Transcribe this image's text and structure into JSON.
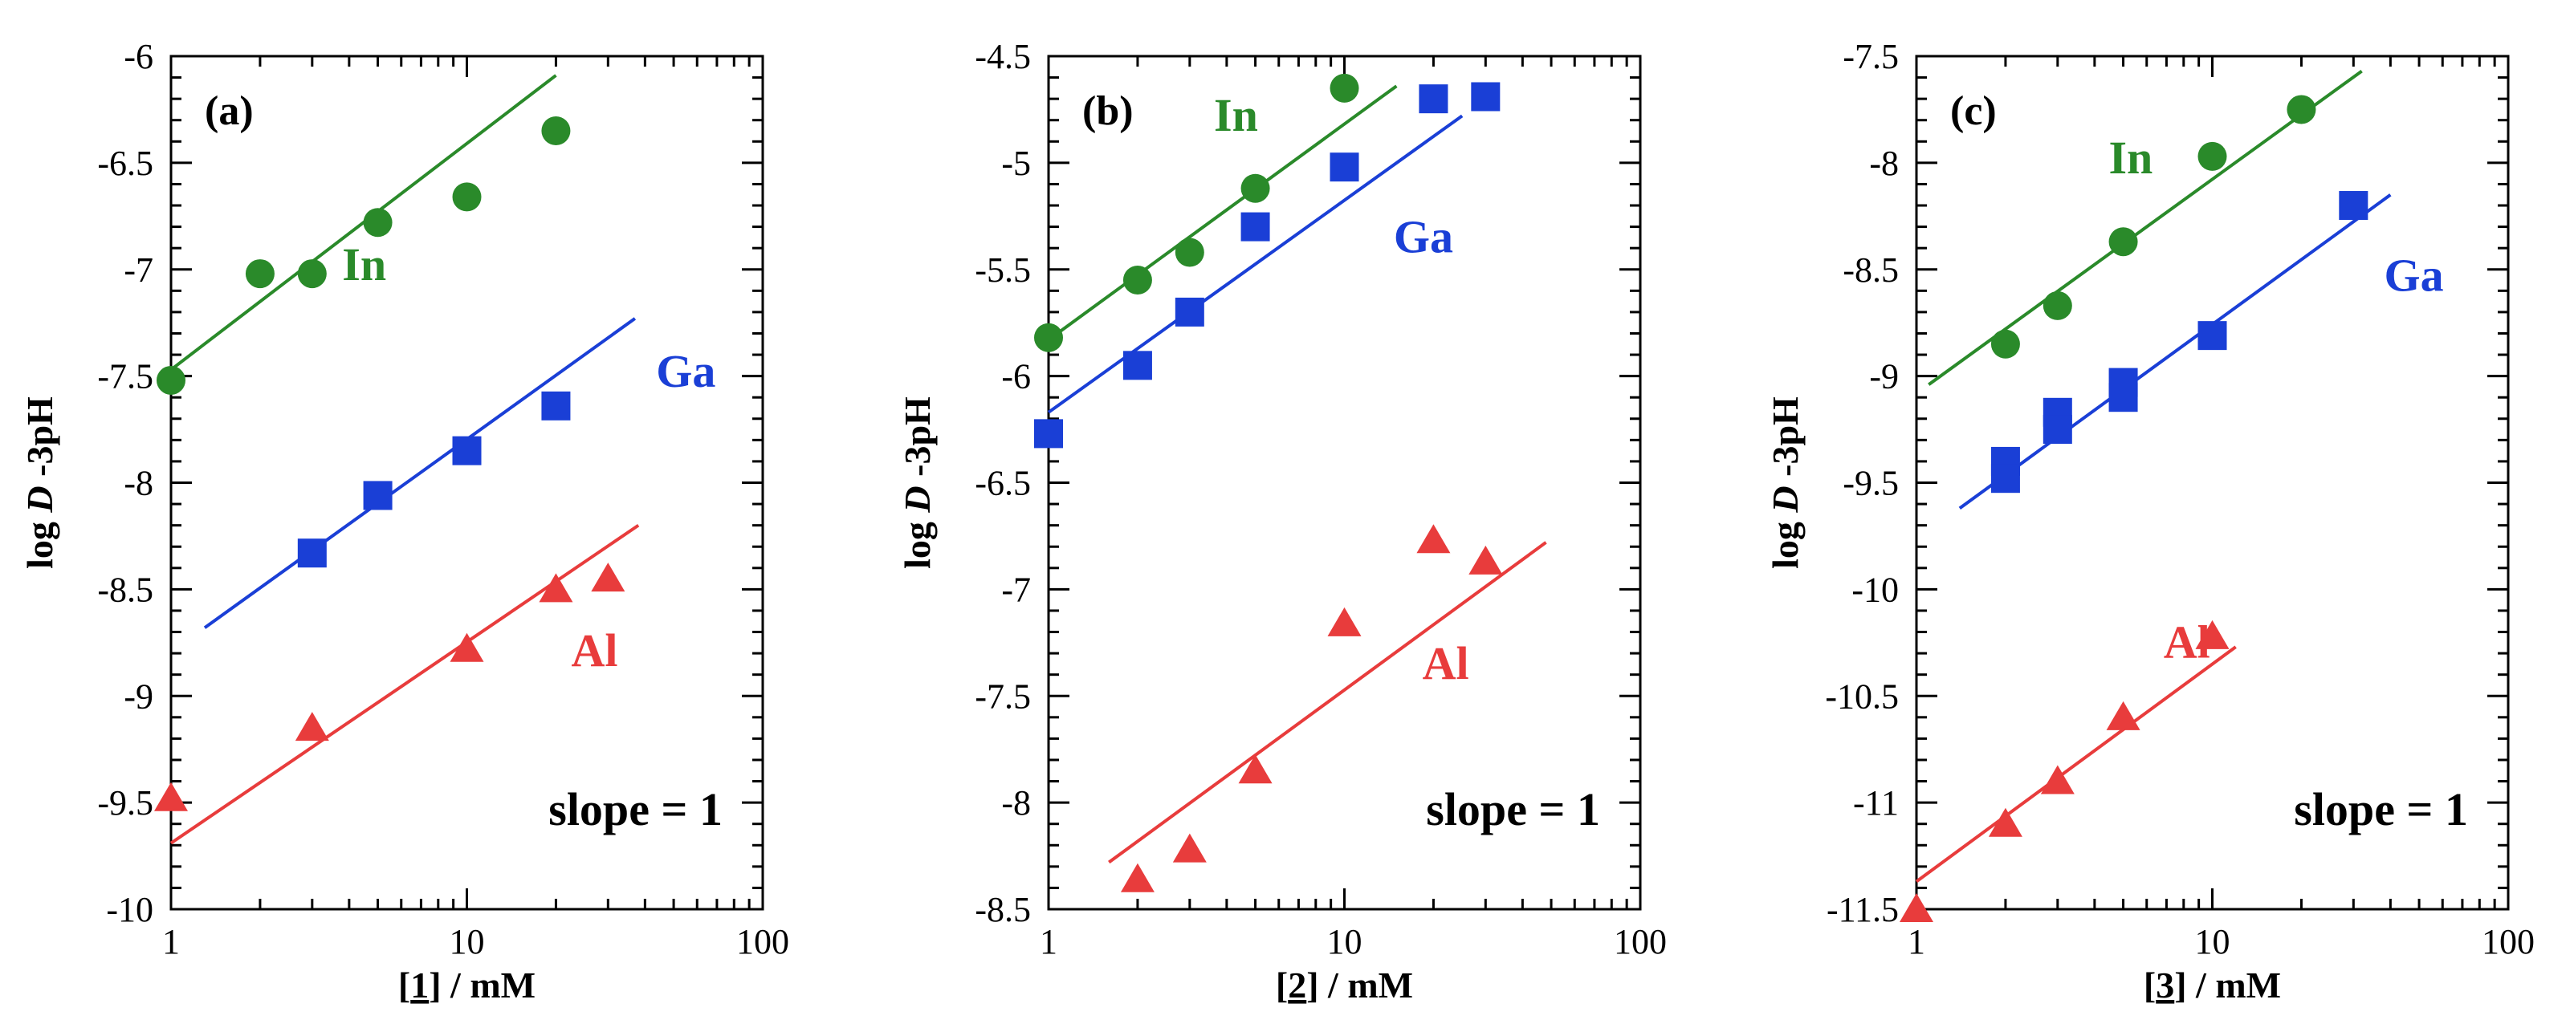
{
  "chart_data": [
    {
      "type": "scatter",
      "panel_label": "(a)",
      "xlabel_prefix": "[",
      "xlabel_compound": "1",
      "xlabel_suffix": "] / mM",
      "ylabel_prefix": "log ",
      "ylabel_italic": "D",
      "ylabel_suffix": " -3pH",
      "xscale": "log",
      "xlim": [
        1,
        100
      ],
      "ylim": [
        -10,
        -6
      ],
      "x_ticks": [
        1,
        10,
        100
      ],
      "x_tick_labels": [
        "1",
        "10",
        "100"
      ],
      "y_ticks": [
        -6,
        -6.5,
        -7,
        -7.5,
        -8,
        -8.5,
        -9,
        -9.5,
        -10
      ],
      "y_tick_labels": [
        "-6",
        "-6.5",
        "-7",
        "-7.5",
        "-8",
        "-8.5",
        "-9",
        "-9.5",
        "-10"
      ],
      "annotation": "slope = 1",
      "series": [
        {
          "name": "In",
          "color": "#2a8a2a",
          "marker": "circle",
          "x": [
            1,
            2,
            3,
            5,
            10,
            20
          ],
          "y": [
            -7.52,
            -7.02,
            -7.02,
            -6.78,
            -6.66,
            -6.35
          ],
          "fit": {
            "x": [
              1,
              20
            ],
            "y": [
              -7.47,
              -6.09
            ]
          },
          "label_pos": {
            "x": 4.5,
            "y": -7.05
          }
        },
        {
          "name": "Ga",
          "color": "#1a3fd6",
          "marker": "square",
          "x": [
            3,
            5,
            10,
            20
          ],
          "y": [
            -8.33,
            -8.06,
            -7.85,
            -7.64
          ],
          "fit": {
            "x": [
              1.3,
              37
            ],
            "y": [
              -8.68,
              -7.23
            ]
          },
          "label_pos": {
            "x": 55,
            "y": -7.55
          }
        },
        {
          "name": "Al",
          "color": "#e83c3c",
          "marker": "triangle",
          "x": [
            1,
            3,
            10,
            20,
            30
          ],
          "y": [
            -9.48,
            -9.15,
            -8.78,
            -8.5,
            -8.45
          ],
          "fit": {
            "x": [
              1,
              38
            ],
            "y": [
              -9.69,
              -8.2
            ]
          },
          "label_pos": {
            "x": 27,
            "y": -8.86
          }
        }
      ]
    },
    {
      "type": "scatter",
      "panel_label": "(b)",
      "xlabel_prefix": "[",
      "xlabel_compound": "2",
      "xlabel_suffix": "] / mM",
      "ylabel_prefix": "log ",
      "ylabel_italic": "D",
      "ylabel_suffix": " -3pH",
      "xscale": "log",
      "xlim": [
        1,
        100
      ],
      "ylim": [
        -8.5,
        -4.5
      ],
      "x_ticks": [
        1,
        10,
        100
      ],
      "x_tick_labels": [
        "1",
        "10",
        "100"
      ],
      "y_ticks": [
        -4.5,
        -5,
        -5.5,
        -6,
        -6.5,
        -7,
        -7.5,
        -8,
        -8.5
      ],
      "y_tick_labels": [
        "-4.5",
        "-5",
        "-5.5",
        "-6",
        "-6.5",
        "-7",
        "-7.5",
        "-8",
        "-8.5"
      ],
      "annotation": "slope = 1",
      "series": [
        {
          "name": "In",
          "color": "#2a8a2a",
          "marker": "circle",
          "x": [
            1,
            2,
            3,
            5,
            10
          ],
          "y": [
            -5.82,
            -5.55,
            -5.42,
            -5.12,
            -4.65
          ],
          "fit": {
            "x": [
              1,
              15
            ],
            "y": [
              -5.83,
              -4.64
            ]
          },
          "label_pos": {
            "x": 4.3,
            "y": -4.85
          }
        },
        {
          "name": "Ga",
          "color": "#1a3fd6",
          "marker": "square",
          "x": [
            1,
            2,
            3,
            5,
            10,
            20,
            30
          ],
          "y": [
            -6.27,
            -5.95,
            -5.7,
            -5.3,
            -5.02,
            -4.7,
            -4.69
          ],
          "fit": {
            "x": [
              1,
              25
            ],
            "y": [
              -6.17,
              -4.78
            ]
          },
          "label_pos": {
            "x": 18.5,
            "y": -5.42
          }
        },
        {
          "name": "Al",
          "color": "#e83c3c",
          "marker": "triangle",
          "x": [
            2,
            3,
            5,
            10,
            20,
            30
          ],
          "y": [
            -8.36,
            -8.22,
            -7.85,
            -7.16,
            -6.77,
            -6.87
          ],
          "fit": {
            "x": [
              1.6,
              48
            ],
            "y": [
              -8.28,
              -6.78
            ]
          },
          "label_pos": {
            "x": 22,
            "y": -7.42
          }
        }
      ]
    },
    {
      "type": "scatter",
      "panel_label": "(c)",
      "xlabel_prefix": "[",
      "xlabel_compound": "3",
      "xlabel_suffix": "] / mM",
      "ylabel_prefix": "log ",
      "ylabel_italic": "D",
      "ylabel_suffix": " -3pH",
      "xscale": "log",
      "xlim": [
        1,
        100
      ],
      "ylim": [
        -11.5,
        -7.5
      ],
      "x_ticks": [
        1,
        10,
        100
      ],
      "x_tick_labels": [
        "1",
        "10",
        "100"
      ],
      "y_ticks": [
        -7.5,
        -8,
        -8.5,
        -9,
        -9.5,
        -10,
        -10.5,
        -11,
        -11.5
      ],
      "y_tick_labels": [
        "-7.5",
        "-8",
        "-8.5",
        "-9",
        "-9.5",
        "-10",
        "-10.5",
        "-11",
        "-11.5"
      ],
      "annotation": "slope = 1",
      "series": [
        {
          "name": "In",
          "color": "#2a8a2a",
          "marker": "circle",
          "x": [
            2,
            3,
            5,
            10,
            20
          ],
          "y": [
            -8.85,
            -8.67,
            -8.37,
            -7.97,
            -7.75
          ],
          "fit": {
            "x": [
              1.1,
              32
            ],
            "y": [
              -9.04,
              -7.57
            ]
          },
          "label_pos": {
            "x": 5.3,
            "y": -8.05
          }
        },
        {
          "name": "Ga",
          "color": "#1a3fd6",
          "marker": "square",
          "x": [
            2,
            2,
            3,
            3,
            5,
            5,
            10,
            30
          ],
          "y": [
            -9.4,
            -9.48,
            -9.17,
            -9.25,
            -9.03,
            -9.1,
            -8.81,
            -8.2
          ],
          "fit": {
            "x": [
              1.4,
              40
            ],
            "y": [
              -9.62,
              -8.15
            ]
          },
          "label_pos": {
            "x": 48,
            "y": -8.6
          }
        },
        {
          "name": "Al",
          "color": "#e83c3c",
          "marker": "triangle",
          "x": [
            1,
            2,
            3,
            5,
            10
          ],
          "y": [
            -11.5,
            -11.1,
            -10.9,
            -10.6,
            -10.22
          ],
          "fit": {
            "x": [
              1,
              12
            ],
            "y": [
              -11.37,
              -10.27
            ]
          },
          "label_pos": {
            "x": 8.2,
            "y": -10.32
          }
        }
      ]
    }
  ]
}
